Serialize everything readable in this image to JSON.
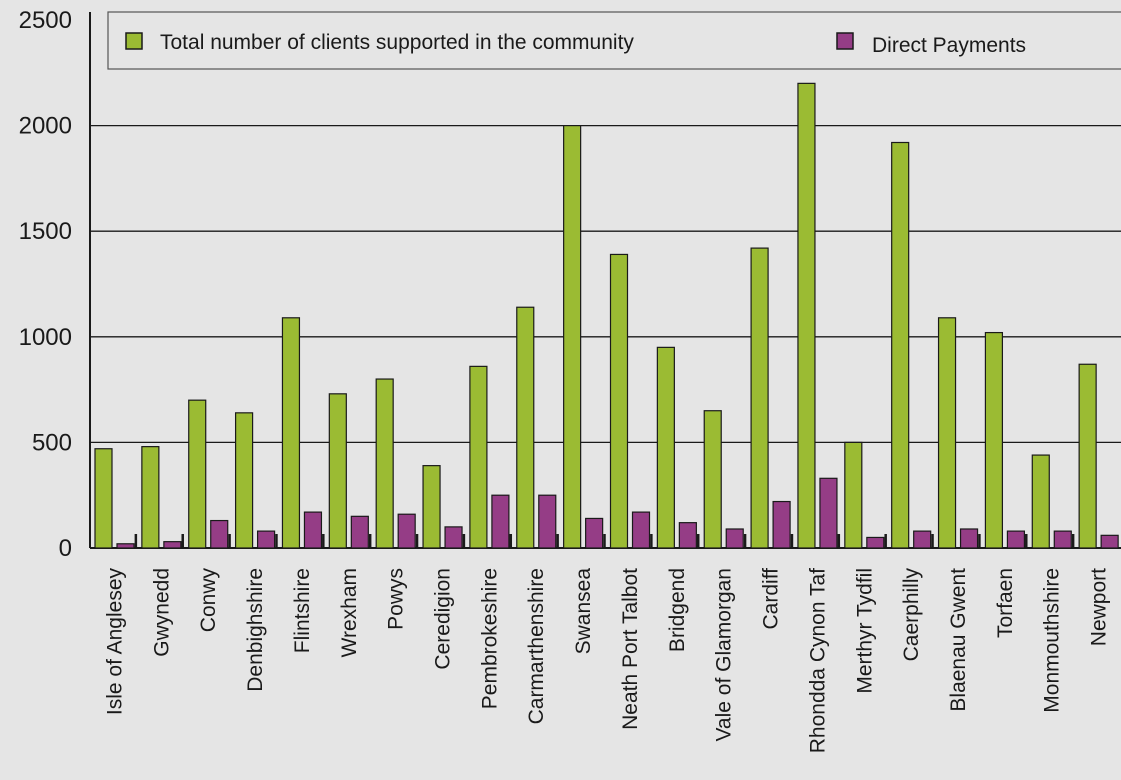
{
  "chart_data": {
    "type": "bar",
    "title": "",
    "xlabel": "",
    "ylabel": "",
    "ylim": [
      0,
      2500
    ],
    "yticks": [
      0,
      500,
      1000,
      1500,
      2000,
      2500
    ],
    "grid": true,
    "legend_position": "top",
    "categories": [
      "Isle of Anglesey",
      "Gwynedd",
      "Conwy",
      "Denbighshire",
      "Flintshire",
      "Wrexham",
      "Powys",
      "Ceredigion",
      "Pembrokeshire",
      "Carmarthenshire",
      "Swansea",
      "Neath Port Talbot",
      "Bridgend",
      "Vale of Glamorgan",
      "Cardiff",
      "Rhondda Cynon Taf",
      "Merthyr Tydfil",
      "Caerphilly",
      "Blaenau Gwent",
      "Torfaen",
      "Monmouthshire",
      "Newport"
    ],
    "series": [
      {
        "name": "Total number of clients supported in the community",
        "color": "#9bbb33",
        "values": [
          470,
          480,
          700,
          640,
          1090,
          730,
          800,
          390,
          860,
          1140,
          2000,
          1390,
          950,
          650,
          1420,
          2200,
          500,
          1920,
          1090,
          1020,
          440,
          870
        ]
      },
      {
        "name": "Direct Payments",
        "color": "#953d86",
        "values": [
          20,
          30,
          130,
          80,
          170,
          150,
          160,
          100,
          250,
          250,
          140,
          170,
          120,
          90,
          220,
          330,
          50,
          80,
          90,
          80,
          80,
          60
        ]
      }
    ]
  }
}
